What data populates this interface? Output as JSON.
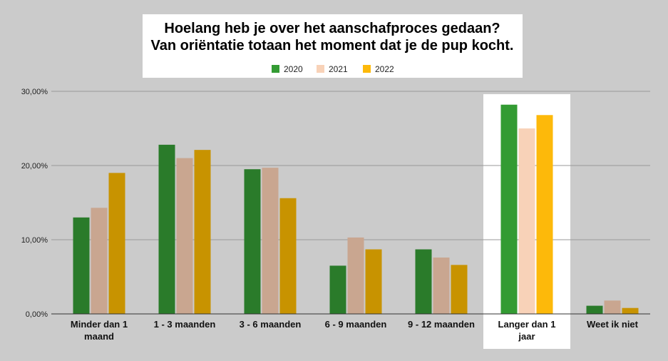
{
  "chart_data": {
    "type": "bar",
    "title": "Hoelang heb je over het aanschafproces gedaan?",
    "subtitle": "Van oriëntatie totaan het moment dat je de pup kocht.",
    "xlabel": "",
    "ylabel": "",
    "ylim": [
      0,
      30
    ],
    "yticks": [
      "0,00%",
      "10,00%",
      "20,00%",
      "30,00%"
    ],
    "ytick_values": [
      0,
      10,
      20,
      30
    ],
    "grid": true,
    "legend_position": "top",
    "categories": [
      [
        "Minder dan 1",
        "maand"
      ],
      [
        "1 - 3 maanden"
      ],
      [
        "3 - 6 maanden"
      ],
      [
        "6 - 9 maanden"
      ],
      [
        "9 - 12 maanden"
      ],
      [
        "Langer dan 1",
        "jaar"
      ],
      [
        "Weet ik niet"
      ]
    ],
    "highlighted_category_index": 5,
    "series": [
      {
        "name": "2020",
        "color": "#2a7b2a",
        "highlight_color": "#339b33",
        "values": [
          13.0,
          22.8,
          19.5,
          6.5,
          8.7,
          28.2,
          1.1
        ]
      },
      {
        "name": "2021",
        "color": "#c9a690",
        "highlight_color": "#f8d2b8",
        "values": [
          14.3,
          21.0,
          19.7,
          10.3,
          7.6,
          25.0,
          1.8
        ]
      },
      {
        "name": "2022",
        "color": "#c89300",
        "highlight_color": "#fdb90a",
        "values": [
          19.0,
          22.1,
          15.6,
          8.7,
          6.6,
          26.8,
          0.8
        ]
      }
    ]
  }
}
